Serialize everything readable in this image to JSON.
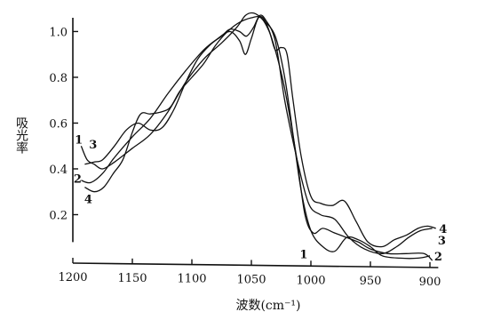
{
  "chart_data": {
    "type": "line",
    "title": "",
    "xlabel": "波数(cm⁻¹)",
    "ylabel": "吸光率",
    "xlim": [
      1200,
      890
    ],
    "ylim": [
      0,
      1.06
    ],
    "x_reversed": true,
    "x_ticks": [
      1200,
      1150,
      1100,
      1050,
      1000,
      950,
      900
    ],
    "x_tick_labels": [
      "1200",
      "1150",
      "1100",
      "1050",
      "1000",
      "950",
      "900"
    ],
    "y_ticks": [
      0.2,
      0.4,
      0.6,
      0.8,
      1.0
    ],
    "y_tick_labels": [
      "0.2",
      "0.4",
      "0.6",
      "0.8",
      "1.0"
    ],
    "grid": false,
    "series": [
      {
        "name": "1",
        "points": [
          [
            1193,
            0.5
          ],
          [
            1188,
            0.44
          ],
          [
            1182,
            0.42
          ],
          [
            1175,
            0.4
          ],
          [
            1165,
            0.43
          ],
          [
            1150,
            0.49
          ],
          [
            1135,
            0.55
          ],
          [
            1120,
            0.65
          ],
          [
            1105,
            0.78
          ],
          [
            1090,
            0.88
          ],
          [
            1075,
            0.95
          ],
          [
            1062,
            1.02
          ],
          [
            1055,
            1.07
          ],
          [
            1048,
            1.08
          ],
          [
            1040,
            1.05
          ],
          [
            1030,
            0.98
          ],
          [
            1022,
            0.8
          ],
          [
            1015,
            0.55
          ],
          [
            1008,
            0.3
          ],
          [
            1000,
            0.13
          ],
          [
            990,
            0.06
          ],
          [
            980,
            0.04
          ],
          [
            970,
            0.1
          ],
          [
            960,
            0.09
          ],
          [
            950,
            0.06
          ],
          [
            940,
            0.02
          ],
          [
            925,
            0.01
          ],
          [
            910,
            0.01
          ],
          [
            900,
            0.02
          ]
        ]
      },
      {
        "name": "2",
        "points": [
          [
            1193,
            0.35
          ],
          [
            1185,
            0.34
          ],
          [
            1175,
            0.38
          ],
          [
            1165,
            0.45
          ],
          [
            1150,
            0.54
          ],
          [
            1135,
            0.62
          ],
          [
            1120,
            0.73
          ],
          [
            1105,
            0.83
          ],
          [
            1090,
            0.92
          ],
          [
            1078,
            0.97
          ],
          [
            1068,
            1.0
          ],
          [
            1060,
            0.96
          ],
          [
            1055,
            0.9
          ],
          [
            1050,
            0.97
          ],
          [
            1044,
            1.06
          ],
          [
            1038,
            1.04
          ],
          [
            1030,
            0.92
          ],
          [
            1022,
            0.75
          ],
          [
            1012,
            0.45
          ],
          [
            1005,
            0.2
          ],
          [
            998,
            0.12
          ],
          [
            990,
            0.14
          ],
          [
            980,
            0.12
          ],
          [
            970,
            0.1
          ],
          [
            960,
            0.08
          ],
          [
            950,
            0.05
          ],
          [
            935,
            0.03
          ],
          [
            920,
            0.03
          ],
          [
            905,
            0.03
          ],
          [
            898,
            0.0
          ]
        ]
      },
      {
        "name": "3",
        "points": [
          [
            1190,
            0.42
          ],
          [
            1182,
            0.43
          ],
          [
            1175,
            0.44
          ],
          [
            1165,
            0.5
          ],
          [
            1155,
            0.57
          ],
          [
            1145,
            0.6
          ],
          [
            1135,
            0.57
          ],
          [
            1125,
            0.58
          ],
          [
            1115,
            0.66
          ],
          [
            1105,
            0.78
          ],
          [
            1095,
            0.88
          ],
          [
            1085,
            0.94
          ],
          [
            1075,
            0.98
          ],
          [
            1068,
            1.01
          ],
          [
            1060,
            1.0
          ],
          [
            1054,
            0.98
          ],
          [
            1048,
            1.02
          ],
          [
            1043,
            1.07
          ],
          [
            1038,
            1.05
          ],
          [
            1030,
            0.96
          ],
          [
            1022,
            0.7
          ],
          [
            1012,
            0.45
          ],
          [
            1002,
            0.25
          ],
          [
            992,
            0.2
          ],
          [
            980,
            0.18
          ],
          [
            968,
            0.1
          ],
          [
            955,
            0.05
          ],
          [
            940,
            0.03
          ],
          [
            928,
            0.06
          ],
          [
            918,
            0.1
          ],
          [
            908,
            0.13
          ],
          [
            898,
            0.14
          ]
        ]
      },
      {
        "name": "4",
        "points": [
          [
            1190,
            0.32
          ],
          [
            1182,
            0.3
          ],
          [
            1174,
            0.32
          ],
          [
            1166,
            0.38
          ],
          [
            1158,
            0.44
          ],
          [
            1150,
            0.56
          ],
          [
            1143,
            0.64
          ],
          [
            1135,
            0.64
          ],
          [
            1125,
            0.65
          ],
          [
            1118,
            0.67
          ],
          [
            1110,
            0.74
          ],
          [
            1100,
            0.8
          ],
          [
            1090,
            0.86
          ],
          [
            1080,
            0.94
          ],
          [
            1070,
            1.0
          ],
          [
            1060,
            1.04
          ],
          [
            1050,
            1.06
          ],
          [
            1042,
            1.06
          ],
          [
            1035,
            1.0
          ],
          [
            1030,
            0.92
          ],
          [
            1025,
            0.93
          ],
          [
            1020,
            0.9
          ],
          [
            1015,
            0.7
          ],
          [
            1008,
            0.45
          ],
          [
            1000,
            0.28
          ],
          [
            992,
            0.25
          ],
          [
            982,
            0.24
          ],
          [
            972,
            0.26
          ],
          [
            962,
            0.17
          ],
          [
            952,
            0.08
          ],
          [
            940,
            0.06
          ],
          [
            930,
            0.09
          ],
          [
            920,
            0.11
          ],
          [
            910,
            0.14
          ],
          [
            902,
            0.15
          ],
          [
            895,
            0.14
          ]
        ]
      }
    ],
    "annotations": [
      {
        "text": "1",
        "x": 1195,
        "y": 0.51
      },
      {
        "text": "3",
        "x": 1183,
        "y": 0.49
      },
      {
        "text": "2",
        "x": 1196,
        "y": 0.34
      },
      {
        "text": "4",
        "x": 1187,
        "y": 0.25
      },
      {
        "text": "1",
        "x": 1006,
        "y": 0.01
      },
      {
        "text": "2",
        "x": 893,
        "y": 0.0
      },
      {
        "text": "3",
        "x": 890,
        "y": 0.07
      },
      {
        "text": "4",
        "x": 889,
        "y": 0.12
      }
    ]
  }
}
